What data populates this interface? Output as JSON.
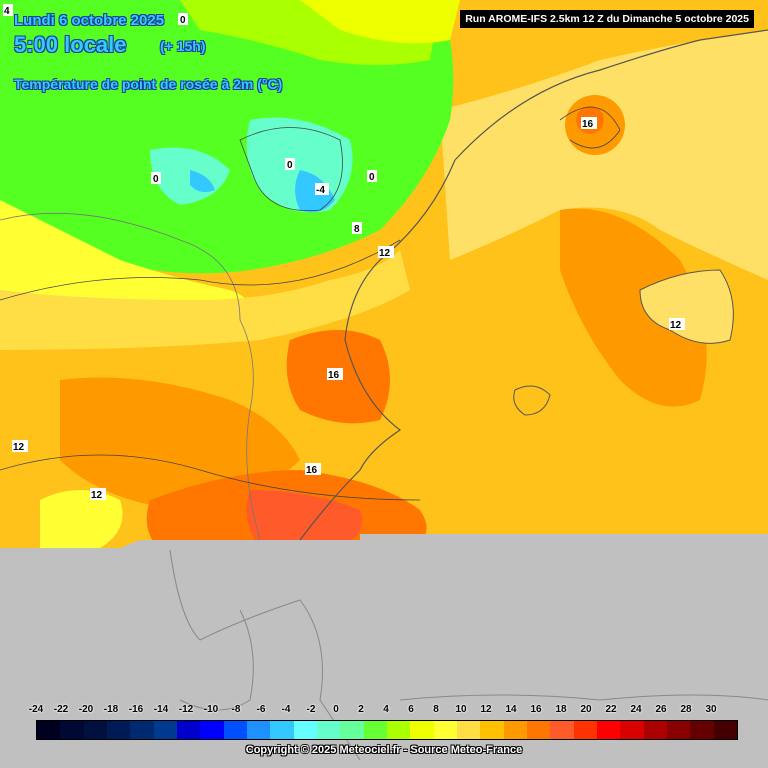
{
  "header": {
    "date": "Lundi 6 octobre 2025",
    "time": "5:00 locale",
    "offset": "(+ 15h)",
    "variable": "Température de point de rosée à 2m (°C)"
  },
  "run_banner": "Run AROME-IFS 2.5km 12 Z du Dimanche 5 octobre 2025",
  "isolines": [
    {
      "text": "4"
    },
    {
      "text": "0"
    },
    {
      "text": "0"
    },
    {
      "text": "0"
    },
    {
      "text": "-4"
    },
    {
      "text": "0"
    },
    {
      "text": "8"
    },
    {
      "text": "12"
    },
    {
      "text": "16"
    },
    {
      "text": "16"
    },
    {
      "text": "16"
    },
    {
      "text": "12"
    },
    {
      "text": "12"
    },
    {
      "text": "12"
    }
  ],
  "legend": {
    "ticks": [
      "-24",
      "-22",
      "-20",
      "-18",
      "-16",
      "-14",
      "-12",
      "-10",
      "-8",
      "-6",
      "-4",
      "-2",
      "0",
      "2",
      "4",
      "6",
      "8",
      "10",
      "12",
      "14",
      "16",
      "18",
      "20",
      "22",
      "24",
      "26",
      "28",
      "30"
    ],
    "colors": [
      "#000020",
      "#000834",
      "#00103f",
      "#001a55",
      "#002a70",
      "#003a90",
      "#0000cc",
      "#0000ff",
      "#0050ff",
      "#1e90ff",
      "#33c8ff",
      "#66ffff",
      "#66ffcc",
      "#66ff99",
      "#66ff33",
      "#aaff00",
      "#eeff00",
      "#ffff33",
      "#ffdd44",
      "#ffc000",
      "#ff9900",
      "#ff7700",
      "#ff5a2a",
      "#ff3300",
      "#ff0000",
      "#d90000",
      "#aa0000",
      "#880000",
      "#660000",
      "#440000"
    ]
  },
  "copyright": "Copyright © 2025 Meteociel.fr - Source Meteo-France"
}
